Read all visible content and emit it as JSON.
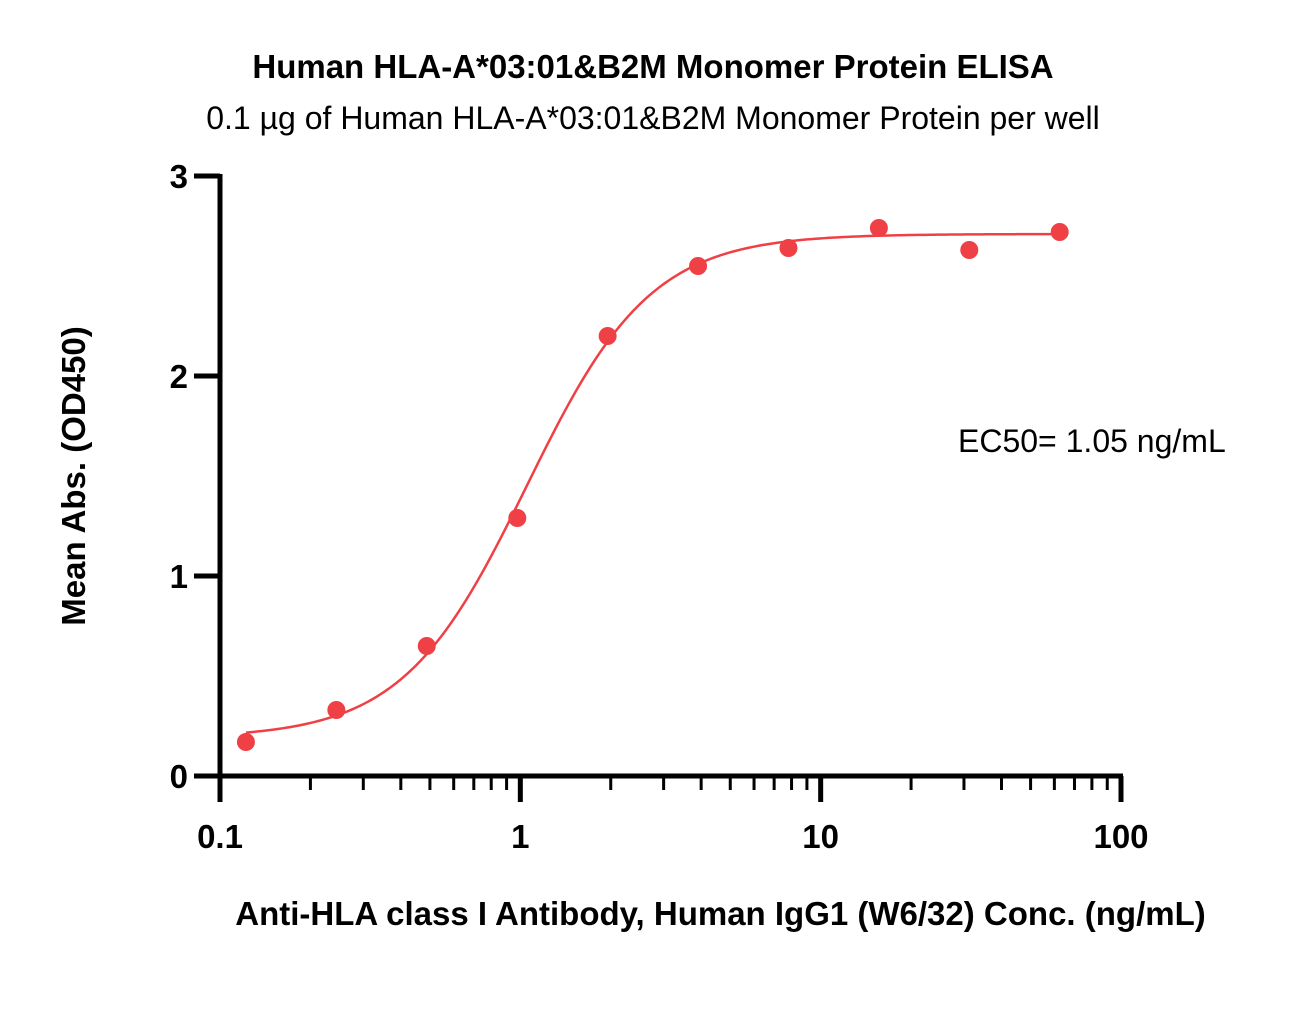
{
  "chart_data": {
    "type": "scatter",
    "title": "Human HLA-A*03:01&B2M Monomer Protein ELISA",
    "subtitle": "0.1 µg of Human HLA-A*03:01&B2M Monomer Protein per well",
    "xlabel": "Anti-HLA class I Antibody, Human IgG1 (W6/32) Conc. (ng/mL)",
    "ylabel": "Mean Abs. (OD450)",
    "xscale": "log",
    "xlim": [
      0.1,
      100
    ],
    "ylim": [
      0,
      3
    ],
    "x_ticks": [
      0.1,
      1,
      10,
      100
    ],
    "x_tick_labels": [
      "0.1",
      "1",
      "10",
      "100"
    ],
    "y_ticks": [
      0,
      1,
      2,
      3
    ],
    "y_tick_labels": [
      "0",
      "1",
      "2",
      "3"
    ],
    "grid": false,
    "series": [
      {
        "color": "#ef4045",
        "x": [
          0.122,
          0.244,
          0.488,
          0.977,
          1.953,
          3.906,
          7.813,
          15.625,
          31.25,
          62.5
        ],
        "y": [
          0.17,
          0.33,
          0.65,
          1.29,
          2.2,
          2.55,
          2.64,
          2.74,
          2.63,
          2.72
        ],
        "fit": {
          "model": "4PL",
          "bottom": 0.19,
          "top": 2.71,
          "ec50": 1.05,
          "hill": 2.1
        }
      }
    ],
    "annotations": [
      {
        "text": "EC50= 1.05 ng/mL"
      }
    ]
  }
}
